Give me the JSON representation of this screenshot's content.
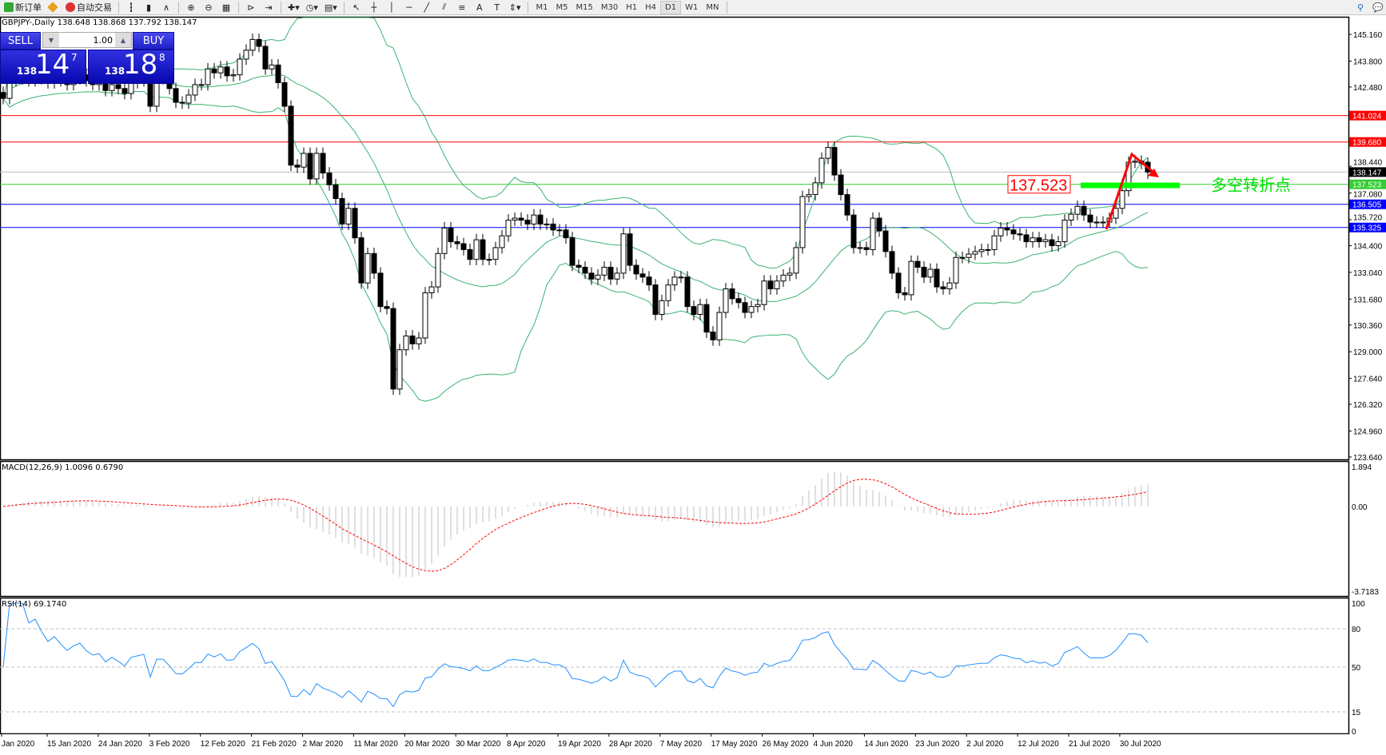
{
  "toolbar": {
    "new_order": "新订单",
    "auto_trading": "自动交易",
    "timeframes": [
      "M1",
      "M5",
      "M15",
      "M30",
      "H1",
      "H4",
      "D1",
      "W1",
      "MN"
    ],
    "selected_timeframe": "D1"
  },
  "chart": {
    "title": "GBPJPY-,Daily  138.648 138.868 137.792 138.147",
    "symbol": "GBPJPY-",
    "period": "Daily"
  },
  "trade_panel": {
    "sell_label": "SELL",
    "buy_label": "BUY",
    "lot": "1.00",
    "sell_prefix": "138",
    "sell_big": "14",
    "sell_sup": "7",
    "buy_prefix": "138",
    "buy_big": "18",
    "buy_sup": "8"
  },
  "annotations": {
    "level_box": "137.523",
    "pivot_text": "多空转折点"
  },
  "colors": {
    "bullish_body": "#ffffff",
    "bearish_body": "#000000",
    "bands": "#3cb371",
    "macd_signal": "#ff0000",
    "macd_hist": "#c0c0c0",
    "rsi": "#1e90ff",
    "resistance": "#ff0000",
    "pivot": "#00ff00",
    "support": "#0000ff",
    "arrow": "#ff0000"
  },
  "chart_data": {
    "type": "candlestick",
    "price_axis": {
      "ticks": [
        "145.160",
        "143.800",
        "142.480",
        "138.440",
        "137.080",
        "135.720",
        "134.400",
        "133.040",
        "131.680",
        "130.360",
        "129.000",
        "127.640",
        "126.320",
        "124.960",
        "123.640"
      ],
      "range": [
        123.64,
        145.16
      ]
    },
    "last_bar": {
      "open": 138.648,
      "high": 138.868,
      "low": 137.792,
      "close": 138.147
    },
    "closes": [
      141.9,
      142.8,
      142.9,
      143.0,
      142.8,
      143.1,
      142.9,
      142.7,
      143.0,
      142.8,
      142.6,
      142.9,
      143.1,
      142.8,
      142.6,
      142.7,
      142.3,
      142.6,
      142.4,
      142.15,
      142.7,
      142.8,
      142.9,
      141.5,
      142.9,
      142.9,
      142.4,
      141.7,
      141.66,
      142.07,
      142.6,
      142.6,
      143.4,
      143.2,
      143.5,
      143.05,
      143.1,
      143.9,
      144.35,
      144.9,
      144.55,
      143.4,
      143.6,
      142.7,
      141.5,
      138.5,
      138.4,
      139.1,
      137.8,
      139.1,
      138.1,
      137.5,
      136.8,
      135.5,
      136.3,
      134.8,
      132.5,
      134.0,
      133.0,
      131.3,
      131.2,
      127.1,
      129.1,
      129.8,
      129.4,
      129.7,
      132.0,
      132.3,
      134.0,
      135.3,
      134.6,
      134.5,
      134.2,
      133.7,
      134.7,
      133.7,
      133.7,
      134.3,
      134.9,
      135.7,
      135.8,
      135.7,
      135.5,
      135.96,
      135.5,
      135.5,
      135.2,
      135.2,
      134.8,
      133.4,
      133.3,
      133.0,
      132.7,
      132.9,
      133.3,
      132.7,
      133.0,
      135.0,
      133.4,
      132.96,
      132.8,
      132.4,
      130.9,
      131.6,
      132.4,
      132.8,
      132.8,
      131.3,
      130.9,
      131.4,
      130.0,
      129.6,
      131.0,
      132.2,
      131.7,
      131.5,
      131.0,
      131.3,
      131.4,
      132.6,
      132.2,
      132.6,
      132.9,
      133.0,
      134.3,
      136.9,
      137.0,
      137.6,
      138.85,
      139.4,
      138.0,
      137.0,
      135.96,
      134.3,
      134.3,
      134.2,
      135.8,
      135.15,
      134.1,
      133.0,
      132.0,
      131.9,
      133.6,
      133.3,
      132.8,
      133.2,
      132.3,
      132.2,
      132.5,
      133.8,
      133.8,
      133.97,
      134.1,
      134.2,
      134.2,
      134.9,
      135.3,
      135.2,
      135.0,
      134.95,
      134.6,
      134.8,
      134.6,
      134.7,
      134.4,
      134.6,
      135.7,
      136.0,
      136.4,
      135.96,
      135.6,
      135.6,
      135.6,
      135.8,
      136.3,
      137.2,
      138.65,
      138.7,
      138.6,
      138.147
    ],
    "horizontal_levels": [
      {
        "price": 141.024,
        "label": "141.024",
        "color": "#ff0000"
      },
      {
        "price": 139.68,
        "label": "139.680",
        "color": "#ff0000"
      },
      {
        "price": 138.147,
        "label": "138.147",
        "color": "#000000",
        "line": "#c0c0c0"
      },
      {
        "price": 137.523,
        "label": "137.523",
        "color": "#32cd32"
      },
      {
        "price": 136.505,
        "label": "136.505",
        "color": "#0000ff"
      },
      {
        "price": 135.325,
        "label": "135.325",
        "color": "#0000ff"
      }
    ],
    "indicators": {
      "bollinger": {
        "period": 20,
        "deviation": 2
      },
      "macd": {
        "label": "MACD(12,26,9) 1.0096 0.6790",
        "ticks": [
          "1.894",
          "0.00",
          "-3.7183"
        ],
        "range": [
          -3.7183,
          1.894
        ]
      },
      "rsi": {
        "label": "RSI(14) 69.1740",
        "ticks": [
          "100",
          "80",
          "50",
          "15",
          "0"
        ],
        "levels": [
          80,
          50,
          15
        ]
      }
    },
    "x_labels": [
      "Jan 2020",
      "15 Jan 2020",
      "24 Jan 2020",
      "3 Feb 2020",
      "12 Feb 2020",
      "21 Feb 2020",
      "2 Mar 2020",
      "11 Mar 2020",
      "20 Mar 2020",
      "30 Mar 2020",
      "8 Apr 2020",
      "19 Apr 2020",
      "28 Apr 2020",
      "7 May 2020",
      "17 May 2020",
      "26 May 2020",
      "4 Jun 2020",
      "14 Jun 2020",
      "23 Jun 2020",
      "2 Jul 2020",
      "12 Jul 2020",
      "21 Jul 2020",
      "30 Jul 2020"
    ]
  }
}
